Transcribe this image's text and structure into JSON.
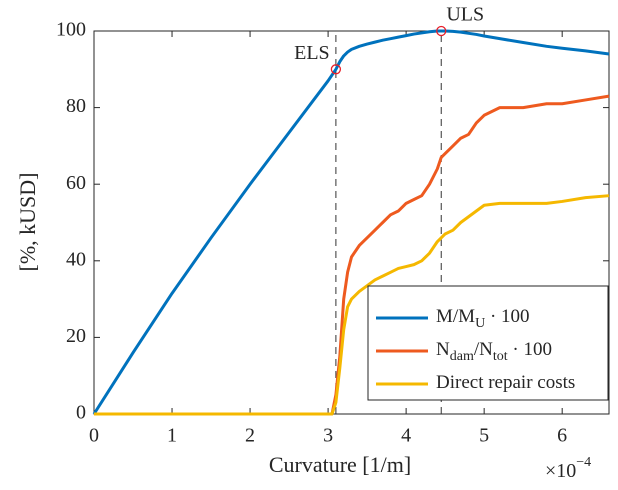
{
  "chart_data": {
    "type": "line",
    "x_label": "Curvature [1/m]",
    "y_label": "[%, kUSD]",
    "x_scale_label": "×10",
    "x_scale_exponent": "−4",
    "x": [
      0,
      0.5,
      1,
      1.5,
      2,
      2.5,
      3,
      3.05,
      3.1,
      3.15,
      3.2,
      3.25,
      3.3,
      3.4,
      3.5,
      3.6,
      3.7,
      3.8,
      3.9,
      4.0,
      4.1,
      4.2,
      4.3,
      4.4,
      4.45,
      4.5,
      4.6,
      4.7,
      4.8,
      4.9,
      5.0,
      5.2,
      5.5,
      5.8,
      6.0,
      6.3,
      6.6
    ],
    "series": [
      {
        "name_parts": [
          {
            "text": "M/M",
            "sub": false
          },
          {
            "text": "U",
            "sub": true
          },
          {
            "text": " · 100",
            "sub": false
          }
        ],
        "color": "#0072bd",
        "values": [
          0,
          16,
          31.5,
          46,
          60,
          73.5,
          87,
          88.5,
          90,
          92,
          93.5,
          94.5,
          95.2,
          96,
          96.6,
          97.1,
          97.6,
          98,
          98.4,
          98.8,
          99.2,
          99.5,
          99.8,
          100,
          100,
          100,
          99.9,
          99.7,
          99.4,
          99.1,
          98.7,
          98,
          97,
          96,
          95.5,
          94.8,
          94
        ]
      },
      {
        "name_parts": [
          {
            "text": "N",
            "sub": false
          },
          {
            "text": "dam",
            "sub": true
          },
          {
            "text": "/N",
            "sub": false
          },
          {
            "text": "tot",
            "sub": true
          },
          {
            "text": " · 100",
            "sub": false
          }
        ],
        "color": "#ee5a1f",
        "values": [
          0,
          0,
          0,
          0,
          0,
          0,
          0,
          0,
          5,
          15,
          30,
          37,
          41,
          44,
          46,
          48,
          50,
          52,
          53,
          55,
          56,
          57,
          60,
          64,
          67,
          68,
          70,
          72,
          73,
          76,
          78,
          80,
          80,
          81,
          81,
          82,
          83
        ]
      },
      {
        "name_parts": [
          {
            "text": "Direct repair costs",
            "sub": false
          }
        ],
        "color": "#f5b800",
        "values": [
          0,
          0,
          0,
          0,
          0,
          0,
          0,
          0,
          3,
          12,
          22,
          28,
          30,
          32,
          33.5,
          35,
          36,
          37,
          38,
          38.5,
          39,
          40,
          42,
          45,
          46,
          47,
          48,
          50,
          51.5,
          53,
          54.5,
          55,
          55,
          55,
          55.5,
          56.5,
          57
        ]
      }
    ],
    "annotations": [
      {
        "text": "ELS",
        "x": 3.1,
        "y": 90
      },
      {
        "text": "ULS",
        "x": 4.45,
        "y": 100
      }
    ],
    "annotation_color": "#e8202a",
    "xlim": [
      0,
      6.6
    ],
    "ylim": [
      0,
      100
    ],
    "xticks": [
      0,
      1,
      2,
      3,
      4,
      5,
      6
    ],
    "yticks": [
      0,
      20,
      40,
      60,
      80,
      100
    ],
    "grid": false,
    "legend": "lower right"
  }
}
